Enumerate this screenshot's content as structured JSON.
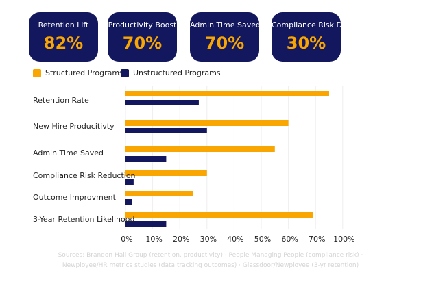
{
  "kpis": [
    {
      "label": "Retention Lift",
      "value": "82%"
    },
    {
      "label": "Productivity Boost",
      "value": "70%"
    },
    {
      "label": "Admin Time Saved",
      "value": "70%"
    },
    {
      "label": "Compliance Risk Drop",
      "value": "30%"
    }
  ],
  "colors": {
    "structured": "#F9A602",
    "unstructured": "#12175E",
    "card_bg": "#12175E"
  },
  "chart_data": {
    "type": "bar",
    "orientation": "horizontal",
    "categories": [
      "Retention Rate",
      "New Hire Producitivty",
      "Admin Time Saved",
      "Compliance Risk Reduction",
      "Outcome Improvment",
      "3-Year Retention Likelihood"
    ],
    "series": [
      {
        "name": "Structured Programs",
        "values": [
          75,
          60,
          55,
          30,
          25,
          69
        ]
      },
      {
        "name": "Unstructured Programs",
        "values": [
          27,
          30,
          15,
          3,
          2.5,
          15
        ]
      }
    ],
    "tick_labels": [
      "0%",
      "10%",
      "20%",
      "30%",
      "40%",
      "50%",
      "60%",
      "70%",
      "100%"
    ],
    "xlim": [
      0,
      80
    ],
    "grid": true,
    "legend": "top-left"
  },
  "sources": [
    "Sources: Brandon Hall Group (retention, productivity) · People Managing People (compliance risk) ·",
    "Newployee/HR metrics studies (data tracking outcomes) · Glassdoor/Newployee (3-yr retention)"
  ]
}
